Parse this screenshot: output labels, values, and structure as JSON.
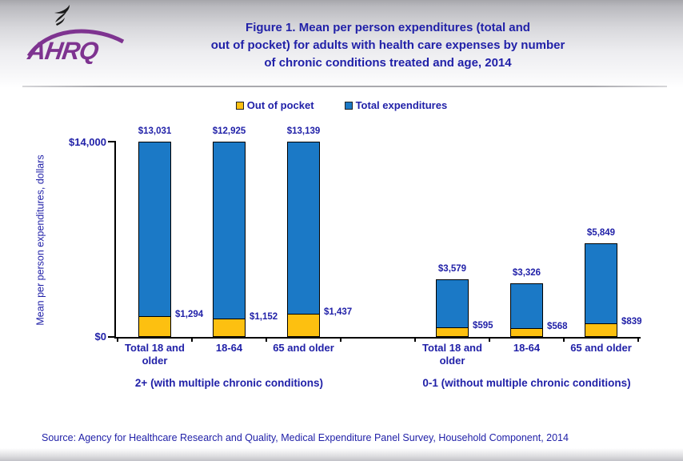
{
  "header": {
    "logo_text": "AHRQ",
    "title_lines": [
      "Figure 1. Mean per person expenditures (total and",
      "out of pocket) for adults with health care expenses by number",
      "of chronic conditions treated and age, 2014"
    ]
  },
  "legend": {
    "items": [
      {
        "label": "Out of pocket",
        "color": "#FDC010"
      },
      {
        "label": "Total expenditures",
        "color": "#1B79C6"
      }
    ]
  },
  "chart_data": {
    "type": "bar",
    "title": "Figure 1. Mean per person expenditures (total and out of pocket) for adults with health care expenses by number of chronic conditions treated and age, 2014",
    "ylabel": "Mean per person expenditures, dollars",
    "xlabel": "",
    "ylim": [
      0,
      14000
    ],
    "grid": false,
    "legend_position": "top-center",
    "bar_style": "out-of-pocket segment overlaid at base of total-expenditures bar",
    "yticks": [
      {
        "value": 0,
        "label": "$0"
      },
      {
        "value": 14000,
        "label": "$14,000"
      }
    ],
    "groups": [
      {
        "label": "2+ (with multiple chronic conditions)",
        "categories": [
          "Total 18 and older",
          "18-64",
          "65 and older"
        ],
        "series": [
          {
            "name": "Total expenditures",
            "values": [
              13031,
              12925,
              13139
            ],
            "labels": [
              "$13,031",
              "$12,925",
              "$13,139"
            ]
          },
          {
            "name": "Out of pocket",
            "values": [
              1294,
              1152,
              1437
            ],
            "labels": [
              "$1,294",
              "$1,152",
              "$1,437"
            ]
          }
        ]
      },
      {
        "label": "0-1 (without multiple chronic conditions)",
        "categories": [
          "Total 18 and older",
          "18-64",
          "65 and older"
        ],
        "series": [
          {
            "name": "Total expenditures",
            "values": [
              3579,
              3326,
              5849
            ],
            "labels": [
              "$3,579",
              "$3,326",
              "$5,849"
            ]
          },
          {
            "name": "Out of pocket",
            "values": [
              595,
              568,
              839
            ],
            "labels": [
              "$595",
              "$568",
              "$839"
            ]
          }
        ]
      }
    ]
  },
  "colors": {
    "navy_text": "#2121A8",
    "bar_total": "#1B79C6",
    "bar_out_of_pocket": "#FDC010",
    "axis": "#000000",
    "logo_purple": "#7E3390"
  },
  "source": "Source: Agency for Healthcare Research and Quality, Medical Expenditure Panel Survey,  Household Component, 2014"
}
